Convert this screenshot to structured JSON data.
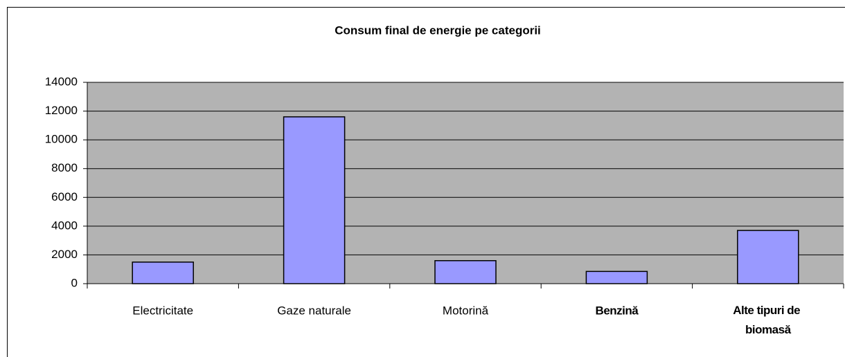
{
  "chart_data": {
    "type": "bar",
    "title": "Consum final de energie pe categorii",
    "categories": [
      "Electricitate",
      "Gaze naturale",
      "Motorină",
      "Benzină",
      "Alte tipuri de biomasă"
    ],
    "category_label_bold": [
      false,
      false,
      false,
      true,
      true
    ],
    "values": [
      1500,
      11600,
      1600,
      850,
      3700
    ],
    "color": "#9999ff",
    "ylim": [
      0,
      14000
    ],
    "yticks": [
      0,
      2000,
      4000,
      6000,
      8000,
      10000,
      12000,
      14000
    ],
    "grid": true
  }
}
